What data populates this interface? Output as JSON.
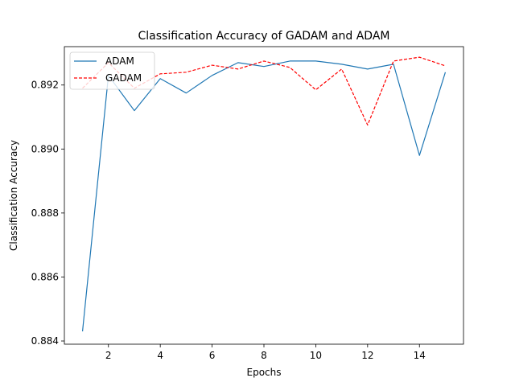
{
  "chart_data": {
    "type": "line",
    "title": "Classification Accuracy of GADAM and ADAM",
    "xlabel": "Epochs",
    "ylabel": "Classification Accuracy",
    "xlim": [
      0.3,
      15.7
    ],
    "ylim": [
      0.8839,
      0.8932
    ],
    "xticks": [
      2,
      4,
      6,
      8,
      10,
      12,
      14
    ],
    "yticks": [
      0.884,
      0.886,
      0.888,
      0.89,
      0.892
    ],
    "ytick_labels": [
      "0.884",
      "0.886",
      "0.888",
      "0.890",
      "0.892"
    ],
    "grid": false,
    "legend_position": "top-left",
    "x": [
      1,
      2,
      3,
      4,
      5,
      6,
      7,
      8,
      9,
      10,
      11,
      12,
      13,
      14,
      15
    ],
    "series": [
      {
        "name": "ADAM",
        "color": "#1f77b4",
        "linestyle": "solid",
        "values": [
          0.8843,
          0.8923,
          0.8912,
          0.8922,
          0.89175,
          0.8923,
          0.8927,
          0.89258,
          0.89275,
          0.89275,
          0.89265,
          0.8925,
          0.89265,
          0.8898,
          0.8924
        ]
      },
      {
        "name": "GADAM",
        "color": "#ff0000",
        "linestyle": "dashed",
        "values": [
          0.8919,
          0.8927,
          0.8919,
          0.89235,
          0.8924,
          0.89262,
          0.8925,
          0.89275,
          0.89255,
          0.89185,
          0.8925,
          0.89075,
          0.89275,
          0.89287,
          0.8926
        ]
      }
    ]
  }
}
